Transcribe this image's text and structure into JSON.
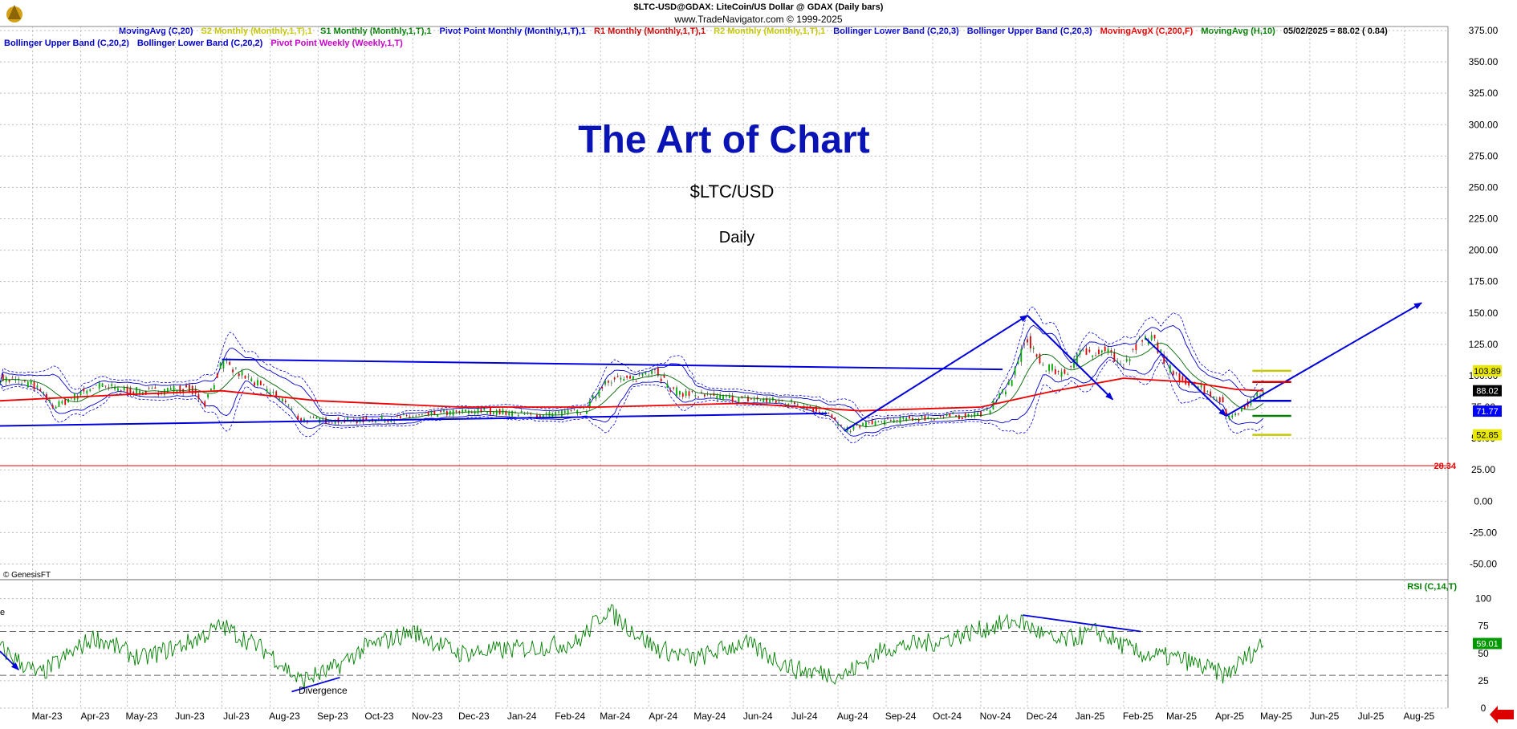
{
  "header": {
    "symbol_line": "$LTC-USD@GDAX:  LiteCoin/US Dollar @ GDAX  (Daily bars)",
    "copyright_line": "www.TradeNavigator.com © 1999-2025",
    "credit": "© GenesisFT"
  },
  "legend": {
    "row1": [
      {
        "label": "MovingAvg (C,20)",
        "color": "#0000cc"
      },
      {
        "label": "S2 Monthly (Monthly,1,T),1",
        "color": "#c8c800"
      },
      {
        "label": "S1 Monthly (Monthly,1,T),1",
        "color": "#008000"
      },
      {
        "label": "Pivot Point Monthly (Monthly,1,T),1",
        "color": "#0000cc"
      },
      {
        "label": "R1 Monthly (Monthly,1,T),1",
        "color": "#cc0000"
      },
      {
        "label": "R2 Monthly (Monthly,1,T),1",
        "color": "#c8c800"
      },
      {
        "label": "Bollinger Lower Band (C,20,3)",
        "color": "#0000cc"
      },
      {
        "label": "Bollinger Upper Band (C,20,3)",
        "color": "#0000cc"
      },
      {
        "label": "MovingAvgX (C,200,F)",
        "color": "#ee0000"
      },
      {
        "label": "MovingAvg (H,10)",
        "color": "#008000"
      },
      {
        "label": "05/02/2025 = 88.02 ( 0.84)",
        "color": "#000000"
      }
    ],
    "row2": [
      {
        "label": "Bollinger Upper Band (C,20,2)",
        "color": "#0000cc"
      },
      {
        "label": "Bollinger Lower Band (C,20,2)",
        "color": "#0000cc"
      },
      {
        "label": "Pivot Point Weekly (Weekly,1,T)",
        "color": "#cc00cc"
      }
    ]
  },
  "overlay": {
    "title": "The Art of Chart",
    "symbol": "$LTC/USD",
    "timeframe": "Daily"
  },
  "chart_data": {
    "type": "candlestick",
    "price_panel": {
      "ylim": [
        -62.5,
        375
      ],
      "y_ticks": [
        -50,
        -25,
        0,
        25,
        50,
        75,
        100,
        125,
        150,
        175,
        200,
        225,
        250,
        275,
        300,
        325,
        350,
        375
      ],
      "y_tick_labels": [
        "-50.00",
        "-25.00",
        "0.00",
        "25.00",
        "50.00",
        "75.00",
        "100.00",
        "125.00",
        "150.00",
        "175.00",
        "200.00",
        "225.00",
        "250.00",
        "275.00",
        "300.00",
        "325.00",
        "350.00",
        "375.00"
      ],
      "last_close": 88.02,
      "close_series_approx": {
        "x": [
          "2023-02-08",
          "2023-03-01",
          "2023-03-15",
          "2023-04-10",
          "2023-05-10",
          "2023-06-10",
          "2023-06-20",
          "2023-07-01",
          "2023-07-20",
          "2023-08-10",
          "2023-08-20",
          "2023-09-20",
          "2023-10-20",
          "2023-11-20",
          "2023-12-20",
          "2024-01-20",
          "2024-02-20",
          "2024-03-05",
          "2024-03-20",
          "2024-04-05",
          "2024-04-15",
          "2024-05-10",
          "2024-06-10",
          "2024-07-05",
          "2024-07-25",
          "2024-08-05",
          "2024-08-20",
          "2024-09-20",
          "2024-10-20",
          "2024-11-05",
          "2024-11-20",
          "2024-12-01",
          "2024-12-10",
          "2024-12-25",
          "2025-01-05",
          "2025-01-20",
          "2025-02-01",
          "2025-02-10",
          "2025-02-20",
          "2025-03-05",
          "2025-03-20",
          "2025-04-05",
          "2025-04-09",
          "2025-04-20",
          "2025-05-02"
        ],
        "close": [
          98,
          93,
          75,
          92,
          87,
          90,
          78,
          110,
          96,
          80,
          65,
          64,
          66,
          70,
          72,
          68,
          72,
          98,
          96,
          107,
          88,
          83,
          81,
          78,
          70,
          56,
          62,
          66,
          68,
          71,
          95,
          130,
          108,
          102,
          118,
          122,
          106,
          125,
          130,
          100,
          93,
          80,
          66,
          76,
          88
        ]
      },
      "series": [
        {
          "name": "MovingAvgX (C,200,F)",
          "color": "#ee0000",
          "x": [
            "2023-02-08",
            "2023-05-01",
            "2023-07-01",
            "2023-09-01",
            "2023-12-01",
            "2024-03-01",
            "2024-06-01",
            "2024-08-15",
            "2024-11-01",
            "2024-12-15",
            "2025-02-01",
            "2025-03-15",
            "2025-04-15",
            "2025-05-02"
          ],
          "values": [
            80,
            85,
            88,
            80,
            75,
            75,
            78,
            72,
            75,
            87,
            98,
            95,
            89,
            88
          ]
        }
      ],
      "annotations": [
        {
          "type": "horizontal-line",
          "label": "28.34",
          "value": 28.34,
          "color": "#ee0000"
        },
        {
          "type": "trendline",
          "color": "#0000dd",
          "from": [
            "2023-02-08",
            60
          ],
          "to": [
            "2024-07-25",
            70
          ]
        },
        {
          "type": "trendline",
          "color": "#0000dd",
          "from": [
            "2023-07-01",
            113
          ],
          "to": [
            "2024-11-15",
            105
          ]
        },
        {
          "type": "trendline",
          "color": "#0000dd",
          "from": [
            "2024-08-05",
            56
          ],
          "to": [
            "2024-12-01",
            148
          ]
        },
        {
          "type": "trendline",
          "color": "#0000dd",
          "from": [
            "2024-12-01",
            148
          ],
          "to": [
            "2025-01-25",
            81
          ]
        },
        {
          "type": "trendline",
          "color": "#0000dd",
          "from": [
            "2025-02-15",
            130
          ],
          "to": [
            "2025-04-08",
            68
          ]
        },
        {
          "type": "trendline",
          "color": "#0000dd",
          "from": [
            "2025-04-08",
            68
          ],
          "to": [
            "2025-08-12",
            158
          ]
        }
      ],
      "pivot_levels": [
        {
          "name": "R2",
          "value": 103.89,
          "label": "103.89",
          "color": "#c8c800"
        },
        {
          "name": "R1",
          "value": 95,
          "color": "#cc0000"
        },
        {
          "name": "Pivot",
          "value": 80,
          "color": "#0000cc"
        },
        {
          "name": "S1",
          "value": 68,
          "color": "#008000"
        },
        {
          "name": "S2",
          "value": 52.85,
          "label": "52.85",
          "color": "#c8c800"
        }
      ],
      "price_labels": [
        {
          "label": "103.89",
          "value": 103.89,
          "bg": "#e8e800",
          "fg": "#000000"
        },
        {
          "label": "88.02",
          "value": 88.02,
          "bg": "#000000",
          "fg": "#ffffff"
        },
        {
          "label": "71.77",
          "value": 71.77,
          "bg": "#0000ff",
          "fg": "#ffffff"
        },
        {
          "label": "52.85",
          "value": 52.85,
          "bg": "#e8e800",
          "fg": "#000000"
        }
      ]
    },
    "rsi_panel": {
      "name": "RSI (C,14,T)",
      "color": "#008000",
      "ylim": [
        0,
        110
      ],
      "y_ticks": [
        0,
        25,
        50,
        75,
        100
      ],
      "y_tick_labels": [
        "0",
        "25",
        "50",
        "75",
        "100"
      ],
      "levels": [
        70,
        30
      ],
      "last_value": 59.01,
      "last_label": "59.01",
      "series_approx": {
        "x": [
          "2023-02-08",
          "2023-03-05",
          "2023-04-10",
          "2023-05-10",
          "2023-06-10",
          "2023-07-01",
          "2023-08-01",
          "2023-08-20",
          "2023-09-10",
          "2023-10-01",
          "2023-11-01",
          "2023-12-01",
          "2024-01-15",
          "2024-02-15",
          "2024-03-05",
          "2024-04-05",
          "2024-05-01",
          "2024-06-01",
          "2024-07-05",
          "2024-08-05",
          "2024-09-01",
          "2024-10-01",
          "2024-11-10",
          "2024-11-25",
          "2024-12-20",
          "2025-01-15",
          "2025-02-10",
          "2025-03-10",
          "2025-04-08",
          "2025-05-02"
        ],
        "values": [
          55,
          30,
          65,
          45,
          60,
          75,
          50,
          25,
          35,
          55,
          70,
          50,
          55,
          60,
          90,
          55,
          45,
          60,
          35,
          30,
          55,
          60,
          75,
          80,
          60,
          70,
          50,
          45,
          30,
          60
        ]
      },
      "annotations": [
        {
          "type": "trendline",
          "color": "#0000dd",
          "from": [
            "2023-08-15",
            15
          ],
          "to": [
            "2023-09-15",
            28
          ]
        },
        {
          "type": "trendline",
          "color": "#0000dd",
          "from": [
            "2024-11-28",
            85
          ],
          "to": [
            "2025-02-12",
            70
          ]
        },
        {
          "type": "trendline",
          "color": "#0000dd",
          "from": [
            "2023-02-08",
            52
          ],
          "to": [
            "2023-02-20",
            35
          ]
        }
      ],
      "label": "Divergence",
      "left_edge_text": "e"
    },
    "x_axis": {
      "type": "date",
      "range": [
        "2023-02-08",
        "2025-08-29"
      ],
      "ticks": [
        "2023-03-01",
        "2023-04-01",
        "2023-05-01",
        "2023-06-01",
        "2023-07-01",
        "2023-08-01",
        "2023-09-01",
        "2023-10-01",
        "2023-11-01",
        "2023-12-01",
        "2024-01-01",
        "2024-02-01",
        "2024-03-01",
        "2024-04-01",
        "2024-05-01",
        "2024-06-01",
        "2024-07-01",
        "2024-08-01",
        "2024-09-01",
        "2024-10-01",
        "2024-11-01",
        "2024-12-01",
        "2025-01-01",
        "2025-02-01",
        "2025-03-01",
        "2025-04-01",
        "2025-05-01",
        "2025-06-01",
        "2025-07-01",
        "2025-08-01"
      ],
      "tick_labels": [
        "Mar-23",
        "Apr-23",
        "May-23",
        "Jun-23",
        "Jul-23",
        "Aug-23",
        "Sep-23",
        "Oct-23",
        "Nov-23",
        "Dec-23",
        "Jan-24",
        "Feb-24",
        "Mar-24",
        "Apr-24",
        "May-24",
        "Jun-24",
        "Jul-24",
        "Aug-24",
        "Sep-24",
        "Oct-24",
        "Nov-24",
        "Dec-24",
        "Jan-25",
        "Feb-25",
        "Mar-25",
        "Apr-25",
        "May-25",
        "Jun-25",
        "Jul-25",
        "Aug-25"
      ]
    }
  }
}
